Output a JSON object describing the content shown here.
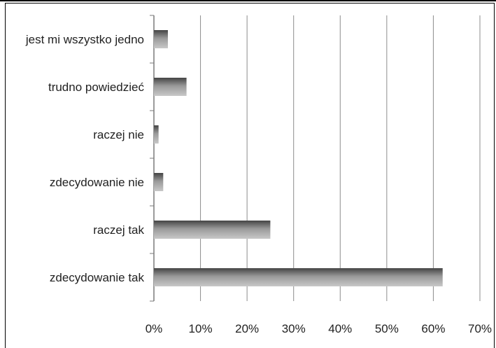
{
  "chart_data": {
    "type": "bar",
    "orientation": "horizontal",
    "categories": [
      "jest mi wszystko jedno",
      "trudno powiedzieć",
      "raczej nie",
      "zdecydowanie nie",
      "raczej tak",
      "zdecydowanie tak"
    ],
    "values": [
      3,
      7,
      1,
      2,
      25,
      62
    ],
    "xlim": [
      0,
      70
    ],
    "xticks": [
      0,
      10,
      20,
      30,
      40,
      50,
      60,
      70
    ],
    "tick_labels": [
      "0%",
      "10%",
      "20%",
      "30%",
      "40%",
      "50%",
      "60%",
      "70%"
    ],
    "grid": true,
    "legend": "none",
    "title": "",
    "xlabel": "",
    "ylabel": "",
    "colors": {
      "bar_dark": "#555555",
      "bar_light": "#b8b8b8",
      "grid": "#8c8c8c"
    }
  }
}
